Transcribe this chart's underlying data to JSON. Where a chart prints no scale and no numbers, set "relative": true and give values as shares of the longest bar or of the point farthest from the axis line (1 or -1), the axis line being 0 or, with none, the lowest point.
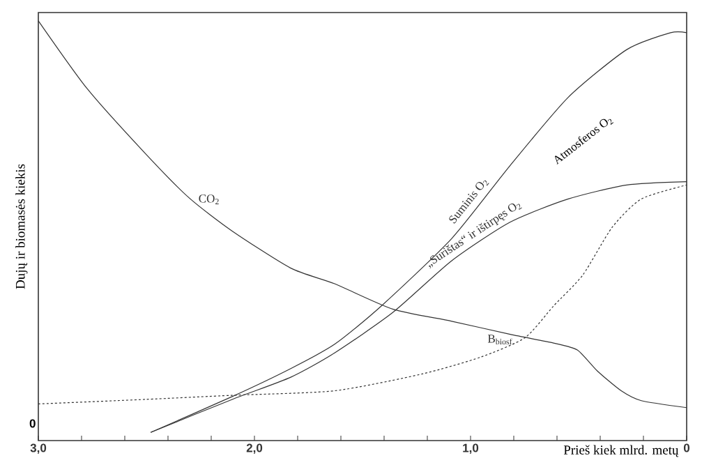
{
  "chart_data": {
    "type": "line",
    "xlabel": "Prieš kiek mlrd. metų",
    "ylabel": "Dujų ir biomasės kiekis",
    "relative": true,
    "grid": false,
    "marker": "none",
    "xlim": [
      3.0,
      0
    ],
    "xticks": [
      {
        "value": 3.0,
        "label": "3,0"
      },
      {
        "value": 2.8,
        "label": null
      },
      {
        "value": 2.6,
        "label": null
      },
      {
        "value": 2.4,
        "label": null
      },
      {
        "value": 2.2,
        "label": null
      },
      {
        "value": 2.0,
        "label": "2,0"
      },
      {
        "value": 1.8,
        "label": null
      },
      {
        "value": 1.6,
        "label": null
      },
      {
        "value": 1.4,
        "label": null
      },
      {
        "value": 1.2,
        "label": null
      },
      {
        "value": 1.0,
        "label": "1,0"
      },
      {
        "value": 0.8,
        "label": null
      },
      {
        "value": 0.6,
        "label": null
      },
      {
        "value": 0.4,
        "label": null
      },
      {
        "value": 0.2,
        "label": null
      },
      0
    ],
    "annotations": [
      "0",
      "Atmosferos O$_{2}$"
    ],
    "series": [
      {
        "name": "CO$_{2}$",
        "color": "#333333",
        "line_style": "solid",
        "x": [
          3.0,
          2.774,
          2.506,
          2.303,
          2.103,
          1.832,
          1.629,
          1.358,
          1.087,
          0.816,
          0.616,
          0.506,
          0.413,
          0.303,
          0.21,
          0
        ],
        "values": [
          1.0,
          0.835,
          0.678,
          0.57,
          0.489,
          0.399,
          0.361,
          0.299,
          0.27,
          0.238,
          0.217,
          0.2,
          0.149,
          0.101,
          0.077,
          0.06
        ]
      },
      {
        "name": "Suminis O$_{2}$",
        "color": "#333333",
        "line_style": "solid",
        "x": [
          2.48,
          2.103,
          1.832,
          1.629,
          1.413,
          1.087,
          0.816,
          0.548,
          0.277,
          0.074,
          0
        ],
        "values": [
          0,
          0.087,
          0.155,
          0.214,
          0.307,
          0.471,
          0.649,
          0.814,
          0.93,
          0.971,
          0.971
        ]
      },
      {
        "name": "„Surištas“ ir ištirpęs O$_{2}$",
        "color": "#333333",
        "line_style": "solid",
        "x": [
          2.48,
          2.103,
          1.832,
          1.629,
          1.358,
          1.087,
          0.816,
          0.548,
          0.277,
          0
        ],
        "values": [
          0,
          0.08,
          0.134,
          0.193,
          0.292,
          0.417,
          0.511,
          0.567,
          0.601,
          0.609
        ]
      },
      {
        "name": "B$_{biosf.}$",
        "color": "#333333",
        "line_style": "dashed",
        "x": [
          3.0,
          2.506,
          2.103,
          1.629,
          1.223,
          0.952,
          0.748,
          0.616,
          0.481,
          0.345,
          0.21,
          0
        ],
        "values": [
          0.069,
          0.08,
          0.09,
          0.101,
          0.142,
          0.183,
          0.23,
          0.307,
          0.382,
          0.498,
          0.567,
          0.601
        ]
      }
    ]
  }
}
